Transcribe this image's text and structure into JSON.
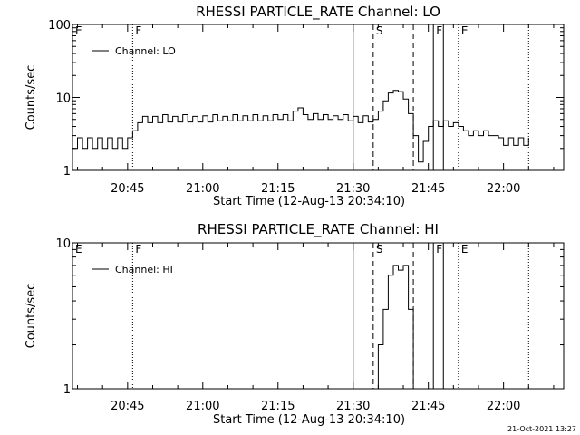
{
  "footer_timestamp": "21-Oct-2021 13:27",
  "colors": {
    "background": "#ffffff",
    "foreground": "#000000"
  },
  "chart_data": [
    {
      "type": "line",
      "title": "RHESSI PARTICLE_RATE Channel: LO",
      "xlabel": "Start Time (12-Aug-13 20:34:10)",
      "ylabel": "Counts/sec",
      "y_scale": "log",
      "grid": false,
      "xlim": [
        "20:34",
        "22:12"
      ],
      "ylim": [
        1,
        100
      ],
      "x_ticks": [
        "20:45",
        "21:00",
        "21:15",
        "21:30",
        "21:45",
        "22:00"
      ],
      "y_ticks": [
        "1",
        "10",
        "100"
      ],
      "legend": {
        "placement": "top-left",
        "entries": [
          "Channel: LO"
        ]
      },
      "event_markers": [
        {
          "label": "E",
          "time": "20:34",
          "style": "none"
        },
        {
          "label": "F",
          "time": "20:46",
          "style": "dotted"
        },
        {
          "label": "",
          "time": "21:30",
          "style": "solid"
        },
        {
          "label": "S",
          "time": "21:34",
          "style": "dashed"
        },
        {
          "label": "",
          "time": "21:42",
          "style": "dashed"
        },
        {
          "label": "F",
          "time": "21:46",
          "style": "solid"
        },
        {
          "label": "",
          "time": "21:48",
          "style": "solid"
        },
        {
          "label": "E",
          "time": "21:51",
          "style": "dotted"
        },
        {
          "label": "",
          "time": "22:05",
          "style": "dotted"
        }
      ],
      "series": [
        {
          "name": "Channel: LO",
          "points": [
            [
              "20:34",
              2.0
            ],
            [
              "20:35",
              2.8
            ],
            [
              "20:36",
              2.0
            ],
            [
              "20:37",
              2.8
            ],
            [
              "20:38",
              2.0
            ],
            [
              "20:39",
              2.8
            ],
            [
              "20:40",
              2.0
            ],
            [
              "20:41",
              2.8
            ],
            [
              "20:42",
              2.0
            ],
            [
              "20:43",
              2.8
            ],
            [
              "20:44",
              2.0
            ],
            [
              "20:45",
              2.8
            ],
            [
              "20:46",
              3.5
            ],
            [
              "20:47",
              4.5
            ],
            [
              "20:48",
              5.5
            ],
            [
              "20:49",
              4.5
            ],
            [
              "20:50",
              5.5
            ],
            [
              "20:51",
              4.5
            ],
            [
              "20:52",
              5.8
            ],
            [
              "20:53",
              4.6
            ],
            [
              "20:54",
              5.5
            ],
            [
              "20:55",
              4.6
            ],
            [
              "20:56",
              5.8
            ],
            [
              "20:57",
              4.6
            ],
            [
              "20:58",
              5.5
            ],
            [
              "20:59",
              4.6
            ],
            [
              "21:00",
              5.6
            ],
            [
              "21:01",
              4.6
            ],
            [
              "21:02",
              5.8
            ],
            [
              "21:03",
              4.8
            ],
            [
              "21:04",
              5.5
            ],
            [
              "21:05",
              4.8
            ],
            [
              "21:06",
              5.8
            ],
            [
              "21:07",
              4.8
            ],
            [
              "21:08",
              5.6
            ],
            [
              "21:09",
              4.8
            ],
            [
              "21:10",
              5.8
            ],
            [
              "21:11",
              4.8
            ],
            [
              "21:12",
              5.6
            ],
            [
              "21:13",
              4.8
            ],
            [
              "21:14",
              5.8
            ],
            [
              "21:15",
              5.0
            ],
            [
              "21:16",
              5.8
            ],
            [
              "21:17",
              4.8
            ],
            [
              "21:18",
              6.5
            ],
            [
              "21:19",
              7.2
            ],
            [
              "21:20",
              5.8
            ],
            [
              "21:21",
              5.0
            ],
            [
              "21:22",
              6.0
            ],
            [
              "21:23",
              5.0
            ],
            [
              "21:24",
              5.8
            ],
            [
              "21:25",
              5.0
            ],
            [
              "21:26",
              5.6
            ],
            [
              "21:27",
              5.0
            ],
            [
              "21:28",
              5.8
            ],
            [
              "21:29",
              4.8
            ],
            [
              "21:30",
              5.5
            ],
            [
              "21:31",
              4.5
            ],
            [
              "21:32",
              5.6
            ],
            [
              "21:33",
              4.6
            ],
            [
              "21:34",
              5.0
            ],
            [
              "21:35",
              6.5
            ],
            [
              "21:36",
              9.0
            ],
            [
              "21:37",
              11.5
            ],
            [
              "21:38",
              12.5
            ],
            [
              "21:39",
              12.0
            ],
            [
              "21:40",
              9.5
            ],
            [
              "21:41",
              6.0
            ],
            [
              "21:42",
              3.0
            ],
            [
              "21:43",
              1.3
            ],
            [
              "21:44",
              2.5
            ],
            [
              "21:45",
              4.0
            ],
            [
              "21:46",
              4.8
            ],
            [
              "21:47",
              4.0
            ],
            [
              "21:48",
              4.8
            ],
            [
              "21:49",
              4.0
            ],
            [
              "21:50",
              4.5
            ],
            [
              "21:51",
              4.0
            ],
            [
              "21:52",
              3.5
            ],
            [
              "21:53",
              3.0
            ],
            [
              "21:54",
              3.5
            ],
            [
              "21:55",
              3.0
            ],
            [
              "21:56",
              3.5
            ],
            [
              "21:57",
              3.0
            ],
            [
              "21:58",
              3.0
            ],
            [
              "21:59",
              2.8
            ],
            [
              "22:00",
              2.2
            ],
            [
              "22:01",
              2.8
            ],
            [
              "22:02",
              2.2
            ],
            [
              "22:03",
              2.8
            ],
            [
              "22:04",
              2.2
            ],
            [
              "22:05",
              2.8
            ]
          ]
        }
      ]
    },
    {
      "type": "line",
      "title": "RHESSI PARTICLE_RATE Channel: HI",
      "xlabel": "Start Time (12-Aug-13 20:34:10)",
      "ylabel": "Counts/sec",
      "y_scale": "log",
      "grid": false,
      "xlim": [
        "20:34",
        "22:12"
      ],
      "ylim": [
        1,
        10
      ],
      "x_ticks": [
        "20:45",
        "21:00",
        "21:15",
        "21:30",
        "21:45",
        "22:00"
      ],
      "y_ticks": [
        "1",
        "10"
      ],
      "legend": {
        "placement": "top-left",
        "entries": [
          "Channel: HI"
        ]
      },
      "event_markers": [
        {
          "label": "E",
          "time": "20:34",
          "style": "none"
        },
        {
          "label": "F",
          "time": "20:46",
          "style": "dotted"
        },
        {
          "label": "",
          "time": "21:30",
          "style": "solid"
        },
        {
          "label": "S",
          "time": "21:34",
          "style": "dashed"
        },
        {
          "label": "",
          "time": "21:42",
          "style": "dashed"
        },
        {
          "label": "F",
          "time": "21:46",
          "style": "solid"
        },
        {
          "label": "",
          "time": "21:48",
          "style": "solid"
        },
        {
          "label": "E",
          "time": "21:51",
          "style": "dotted"
        },
        {
          "label": "",
          "time": "22:05",
          "style": "dotted"
        }
      ],
      "series": [
        {
          "name": "Channel: HI",
          "points": [
            [
              "21:35",
              1.0
            ],
            [
              "21:35",
              2.0
            ],
            [
              "21:36",
              3.5
            ],
            [
              "21:37",
              6.0
            ],
            [
              "21:38",
              7.0
            ],
            [
              "21:39",
              6.5
            ],
            [
              "21:40",
              7.0
            ],
            [
              "21:41",
              6.5
            ],
            [
              "21:41",
              3.5
            ],
            [
              "21:42",
              1.5
            ],
            [
              "21:42",
              1.0
            ]
          ]
        }
      ]
    }
  ]
}
